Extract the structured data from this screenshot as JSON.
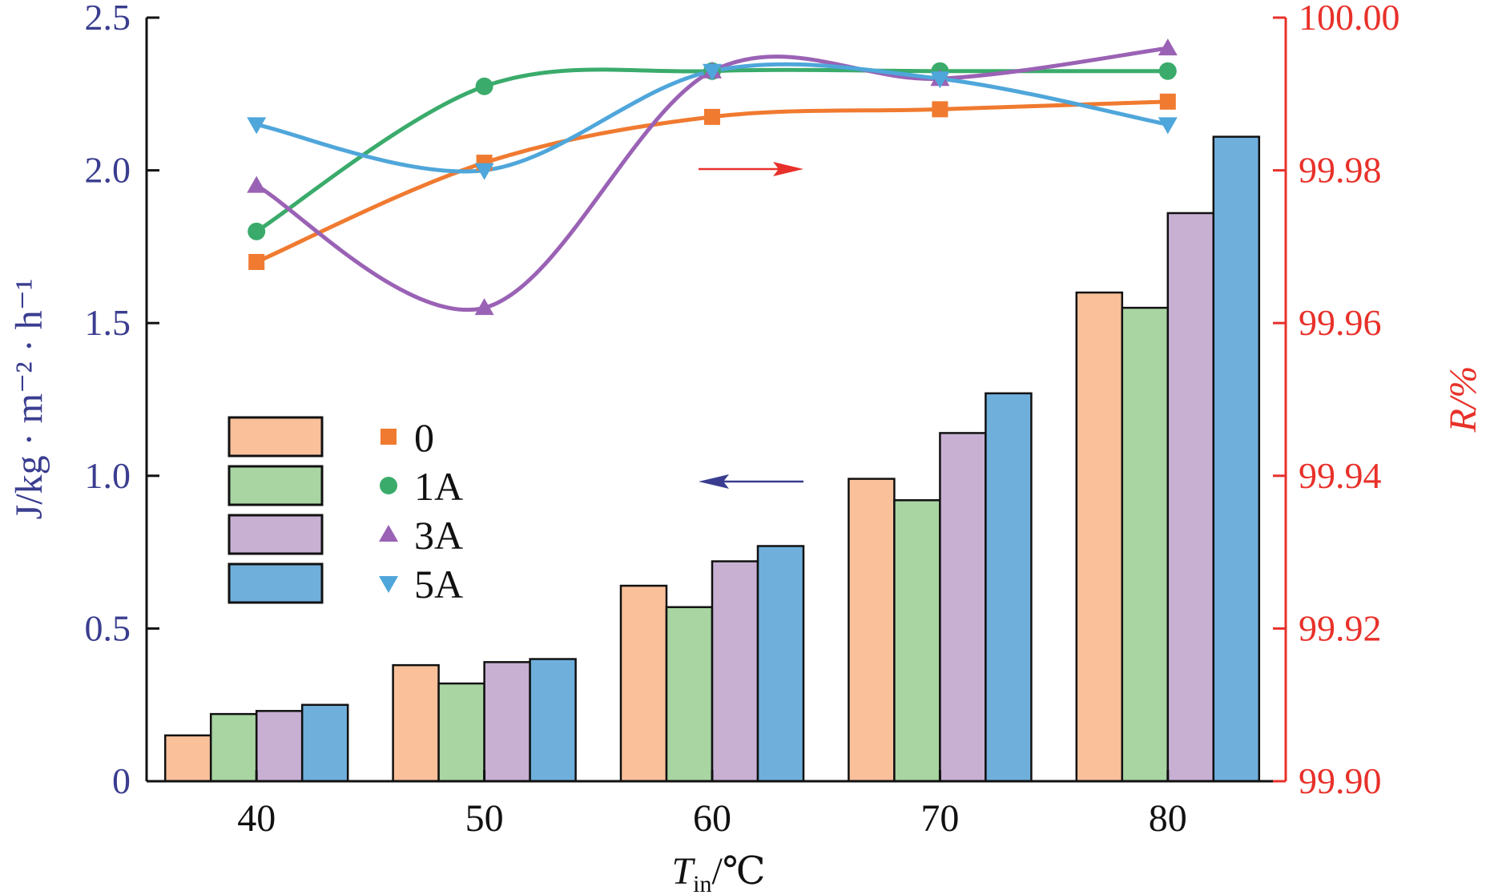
{
  "chart_data": {
    "type": "bar",
    "categories": [
      "40",
      "50",
      "60",
      "70",
      "80"
    ],
    "xlabel": {
      "main": "T",
      "sub": "in",
      "rest": "/℃"
    },
    "ylabel_left": "J/kg · m⁻² · h⁻¹",
    "ylabel_right": "R/%",
    "ylim_left": [
      0,
      2.5
    ],
    "ylim_right": [
      99.9,
      100.0
    ],
    "yticks_left": [
      "0",
      "0.5",
      "1.0",
      "1.5",
      "2.0",
      "2.5"
    ],
    "yticks_right": [
      "99.90",
      "99.92",
      "99.94",
      "99.96",
      "99.98",
      "100.00"
    ],
    "legend_position": "center-left",
    "series": [
      {
        "name": "0",
        "marker": "square",
        "bar_color": "#f9c09a",
        "line_color": "#f07a30",
        "flux": [
          0.15,
          0.38,
          0.64,
          0.99,
          1.6
        ],
        "rejection": [
          99.968,
          99.981,
          99.987,
          99.988,
          99.989
        ]
      },
      {
        "name": "1A",
        "marker": "circle",
        "bar_color": "#a8d5a2",
        "line_color": "#3aab6b",
        "flux": [
          0.22,
          0.32,
          0.57,
          0.92,
          1.55
        ],
        "rejection": [
          99.972,
          99.991,
          99.993,
          99.993,
          99.993
        ]
      },
      {
        "name": "3A",
        "marker": "triangle-up",
        "bar_color": "#c8b0d3",
        "line_color": "#9a62b5",
        "flux": [
          0.23,
          0.39,
          0.72,
          1.14,
          1.86
        ],
        "rejection": [
          99.978,
          99.962,
          99.993,
          99.992,
          99.996
        ]
      },
      {
        "name": "5A",
        "marker": "triangle-down",
        "bar_color": "#6fafdc",
        "line_color": "#4fa6da",
        "flux": [
          0.25,
          0.4,
          0.77,
          1.27,
          2.11
        ],
        "rejection": [
          99.986,
          99.98,
          99.993,
          99.992,
          99.986
        ]
      }
    ],
    "annotations": [
      {
        "type": "arrow",
        "direction": "right",
        "color": "#e8312a",
        "meaning": "points to right axis"
      },
      {
        "type": "arrow",
        "direction": "left",
        "color": "#3a3d8f",
        "meaning": "points to left axis"
      }
    ]
  }
}
